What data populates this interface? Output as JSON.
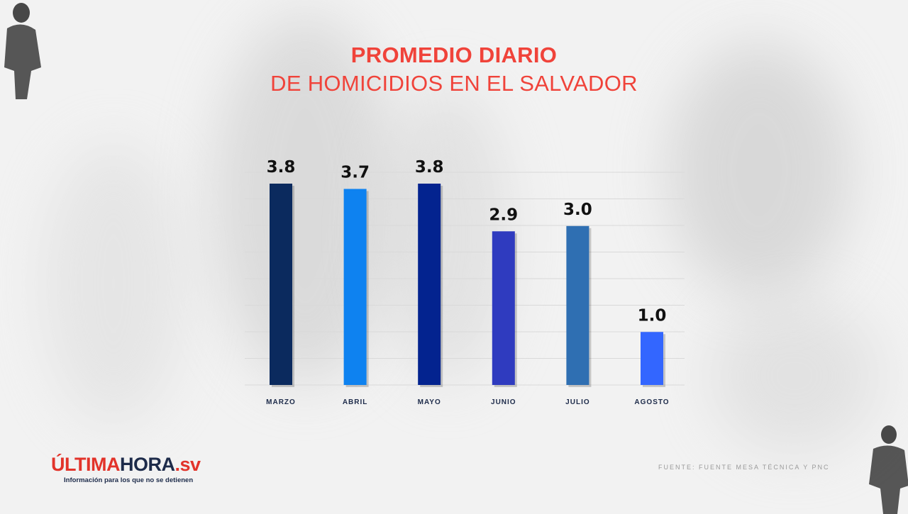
{
  "title": {
    "line1": "PROMEDIO DIARIO",
    "line2": "DE HOMICIDIOS EN EL SALVADOR"
  },
  "chart_data": {
    "type": "bar",
    "categories": [
      "MARZO",
      "ABRIL",
      "MAYO",
      "JUNIO",
      "JULIO",
      "AGOSTO"
    ],
    "values": [
      3.8,
      3.7,
      3.8,
      2.9,
      3.0,
      1.0
    ],
    "value_labels": [
      "3.8",
      "3.7",
      "3.8",
      "2.9",
      "3.0",
      "1.0"
    ],
    "colors": [
      "#0b2a5e",
      "#0e82f0",
      "#03238f",
      "#2f3bbf",
      "#2f6fb2",
      "#3366ff"
    ],
    "grid": true,
    "ylim": [
      0,
      4
    ]
  },
  "source": "FUENTE: FUENTE MESA TÉCNICA Y PNC",
  "brand": {
    "part1": "ÚLTIMA",
    "part2": "HORA",
    "part3": ".sv",
    "tagline": "Información para los que no se detienen"
  },
  "colors": {
    "title": "#f0433a",
    "brand_red": "#e2332a",
    "brand_navy": "#1d2b4a"
  }
}
